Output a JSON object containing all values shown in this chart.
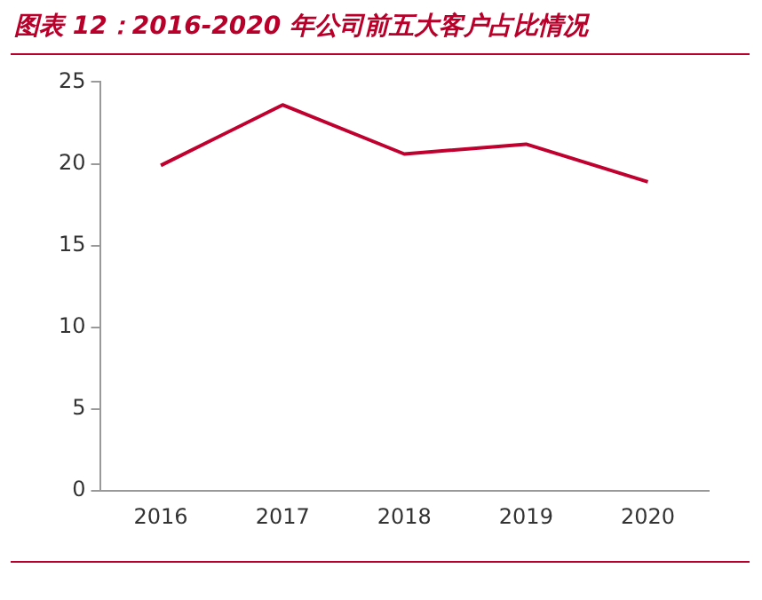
{
  "chart_data": {
    "type": "line",
    "title": "图表 12：2016-2020 年公司前五大客户占比情况",
    "categories": [
      "2016",
      "2017",
      "2018",
      "2019",
      "2020"
    ],
    "series": [
      {
        "color": "#c0002e",
        "values": [
          19.9,
          23.6,
          20.6,
          21.2,
          18.9
        ]
      }
    ],
    "ylim": [
      0,
      25
    ],
    "yticks": [
      0,
      5,
      10,
      15,
      20,
      25
    ],
    "grid": false,
    "legend": false,
    "marker": "none",
    "line_style": "solid"
  }
}
